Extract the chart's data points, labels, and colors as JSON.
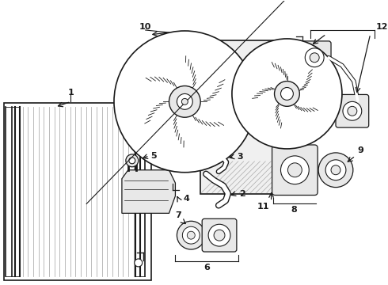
{
  "bg_color": "#ffffff",
  "lc": "#1a1a1a",
  "gray": "#cccccc",
  "lgray": "#e8e8e8",
  "dgray": "#888888",
  "fig_w": 4.9,
  "fig_h": 3.6,
  "dpi": 100
}
